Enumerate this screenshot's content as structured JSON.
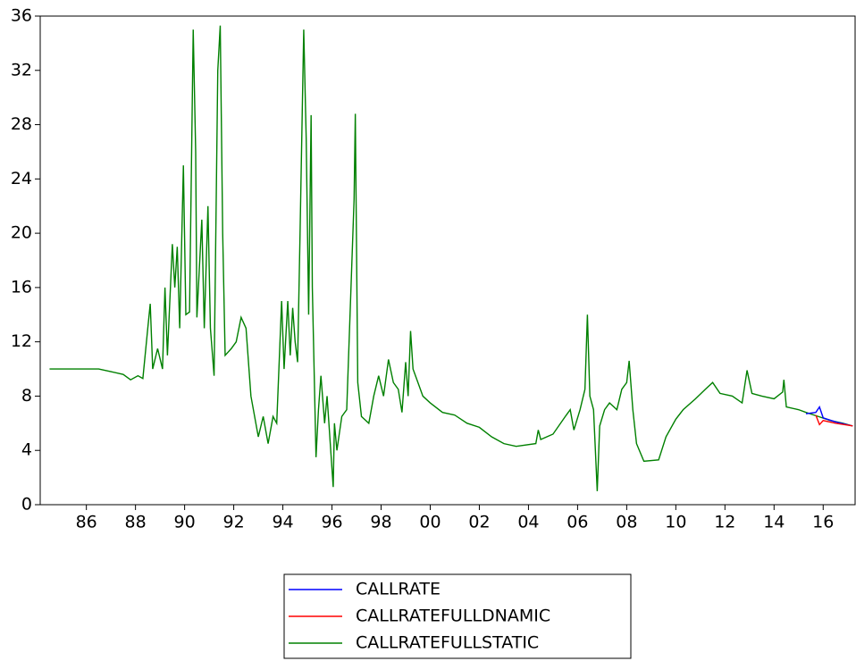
{
  "chart_data": {
    "type": "line",
    "xlim": [
      1984.62,
      2017.8
    ],
    "ylim": [
      0,
      36
    ],
    "yticks": [
      0,
      4,
      8,
      12,
      16,
      20,
      24,
      28,
      32,
      36
    ],
    "xticks": [
      {
        "value": 1986.5,
        "label": "86"
      },
      {
        "value": 1988.5,
        "label": "88"
      },
      {
        "value": 1990.5,
        "label": "90"
      },
      {
        "value": 1992.5,
        "label": "92"
      },
      {
        "value": 1994.5,
        "label": "94"
      },
      {
        "value": 1996.5,
        "label": "96"
      },
      {
        "value": 1998.5,
        "label": "98"
      },
      {
        "value": 2000.5,
        "label": "00"
      },
      {
        "value": 2002.5,
        "label": "02"
      },
      {
        "value": 2004.5,
        "label": "04"
      },
      {
        "value": 2006.5,
        "label": "06"
      },
      {
        "value": 2008.5,
        "label": "08"
      },
      {
        "value": 2010.5,
        "label": "10"
      },
      {
        "value": 2012.5,
        "label": "12"
      },
      {
        "value": 2014.5,
        "label": "14"
      },
      {
        "value": 2016.5,
        "label": "16"
      }
    ],
    "grid": false,
    "series": [
      {
        "name": "CALLRATE",
        "color": "#0000ff",
        "x": [
          2015.8,
          2016.2,
          2016.35,
          2016.5,
          2017,
          2017.7
        ],
        "values": [
          6.7,
          6.8,
          7.2,
          6.4,
          6.1,
          5.8
        ]
      },
      {
        "name": "CALLRATEFULLDNAMIC",
        "color": "#ff0000",
        "x": [
          2016.2,
          2016.35,
          2016.5,
          2017,
          2017.7
        ],
        "values": [
          6.6,
          5.9,
          6.2,
          6.0,
          5.8
        ]
      },
      {
        "name": "CALLRATEFULLSTATIC",
        "color": "#008000",
        "x": [
          1985.0,
          1986,
          1987,
          1987.5,
          1988,
          1988.3,
          1988.6,
          1988.8,
          1989,
          1989.1,
          1989.2,
          1989.4,
          1989.6,
          1989.7,
          1989.8,
          1990.0,
          1990.1,
          1990.2,
          1990.3,
          1990.45,
          1990.55,
          1990.7,
          1990.85,
          1990.95,
          1991.0,
          1991.2,
          1991.3,
          1991.45,
          1991.55,
          1991.7,
          1991.85,
          1991.95,
          1992.05,
          1992.15,
          1992.4,
          1992.6,
          1992.8,
          1993.0,
          1993.2,
          1993.5,
          1993.7,
          1993.9,
          1994.1,
          1994.25,
          1994.45,
          1994.55,
          1994.7,
          1994.8,
          1994.9,
          1995.0,
          1995.1,
          1995.2,
          1995.35,
          1995.45,
          1995.55,
          1995.65,
          1995.7,
          1995.85,
          1995.95,
          1996.05,
          1996.2,
          1996.3,
          1996.55,
          1996.6,
          1996.7,
          1996.9,
          1997.1,
          1997.4,
          1997.45,
          1997.55,
          1997.7,
          1998,
          1998.2,
          1998.4,
          1998.6,
          1998.8,
          1999,
          1999.2,
          1999.35,
          1999.5,
          1999.6,
          1999.7,
          1999.8,
          2000.0,
          2000.2,
          2000.5,
          2001,
          2001.5,
          2002,
          2002.5,
          2003,
          2003.5,
          2004,
          2004.8,
          2004.9,
          2005.0,
          2005.5,
          2006,
          2006.2,
          2006.35,
          2006.6,
          2006.8,
          2006.9,
          2007.0,
          2007.15,
          2007.3,
          2007.4,
          2007.6,
          2007.8,
          2008.1,
          2008.3,
          2008.5,
          2008.6,
          2008.75,
          2008.9,
          2009.2,
          2009.8,
          2010.1,
          2010.5,
          2010.8,
          2011.3,
          2011.7,
          2012,
          2012.3,
          2012.8,
          2013.2,
          2013.4,
          2013.6,
          2014,
          2014.5,
          2014.85,
          2014.9,
          2015.0,
          2015.5,
          2015.8,
          2016.3,
          2016.8,
          2017.3,
          2017.7
        ],
        "values": [
          10,
          10,
          10,
          9.8,
          9.6,
          9.2,
          9.5,
          9.3,
          13,
          14.8,
          10,
          11.5,
          10,
          16,
          11,
          19.2,
          16,
          19,
          13,
          25,
          14,
          14.2,
          35,
          26,
          13.8,
          21,
          13,
          22,
          13,
          9.5,
          32,
          35.3,
          20,
          11,
          11.5,
          12,
          13.8,
          13,
          8,
          5,
          6.5,
          4.5,
          6.5,
          6,
          15,
          10,
          15,
          11,
          14.5,
          12,
          10.5,
          20,
          35,
          27,
          14,
          28.7,
          16,
          3.5,
          7,
          9.5,
          6,
          8,
          1.3,
          6,
          4,
          6.5,
          7,
          22.5,
          28.8,
          9,
          6.5,
          6,
          8,
          9.5,
          8,
          10.7,
          9,
          8.5,
          6.8,
          10.5,
          8,
          12.8,
          10,
          9,
          8,
          7.5,
          6.8,
          6.6,
          6,
          5.7,
          5,
          4.5,
          4.3,
          4.5,
          5.5,
          4.8,
          5.2,
          6.5,
          7,
          5.5,
          7,
          8.5,
          14,
          8,
          7,
          1,
          5.8,
          7,
          7.5,
          7,
          8.5,
          9,
          10.6,
          7,
          4.5,
          3.2,
          3.3,
          5,
          6.3,
          7,
          7.8,
          8.5,
          9,
          8.2,
          8,
          7.5,
          9.9,
          8.2,
          8,
          7.8,
          8.3,
          9.2,
          7.2,
          7,
          6.8,
          6.5,
          6.2,
          6.0,
          5.8
        ]
      }
    ]
  }
}
